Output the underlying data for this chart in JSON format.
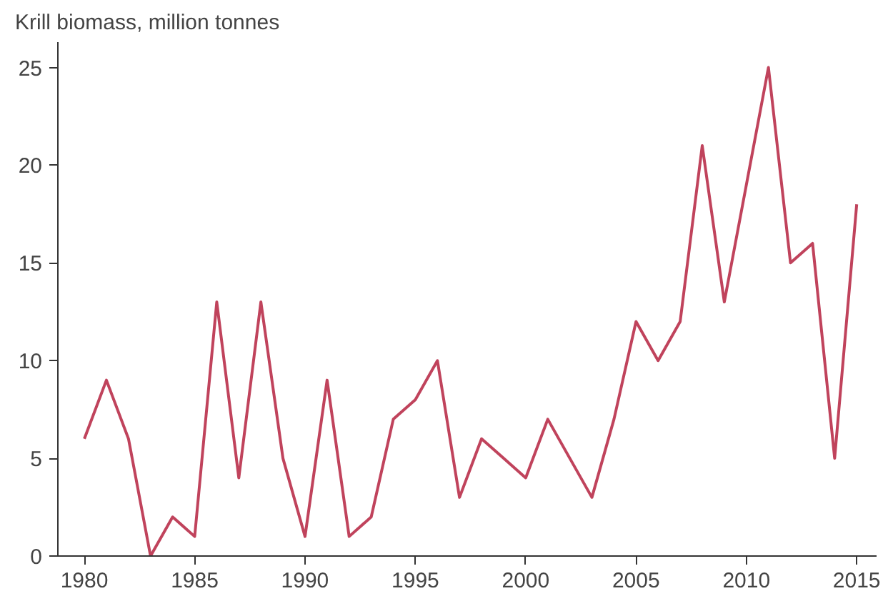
{
  "chart_data": {
    "type": "line",
    "title": "Krill biomass, million tonnes",
    "x": [
      1980,
      1981,
      1982,
      1983,
      1984,
      1985,
      1986,
      1987,
      1988,
      1989,
      1990,
      1991,
      1992,
      1993,
      1994,
      1995,
      1996,
      1997,
      1998,
      1999,
      2000,
      2001,
      2002,
      2003,
      2004,
      2005,
      2006,
      2007,
      2008,
      2009,
      2010,
      2011,
      2012,
      2013,
      2014,
      2015
    ],
    "series": [
      {
        "color": "#c0435c",
        "values": [
          6,
          9,
          6,
          0,
          2,
          1,
          13,
          4,
          13,
          5,
          1,
          9,
          1,
          2,
          7,
          8,
          10,
          3,
          6,
          5,
          4,
          7,
          5,
          3,
          7,
          12,
          10,
          12,
          21,
          13,
          19,
          25,
          15,
          16,
          5,
          18
        ]
      }
    ],
    "xlim": [
      1978.8,
      2015.9
    ],
    "ylim": [
      0,
      26.3
    ],
    "xticks": [
      1980,
      1985,
      1990,
      1995,
      2000,
      2005,
      2010,
      2015
    ],
    "yticks": [
      0,
      5,
      10,
      15,
      20,
      25
    ],
    "grid": false,
    "marker": "none",
    "line_style": "solid"
  }
}
